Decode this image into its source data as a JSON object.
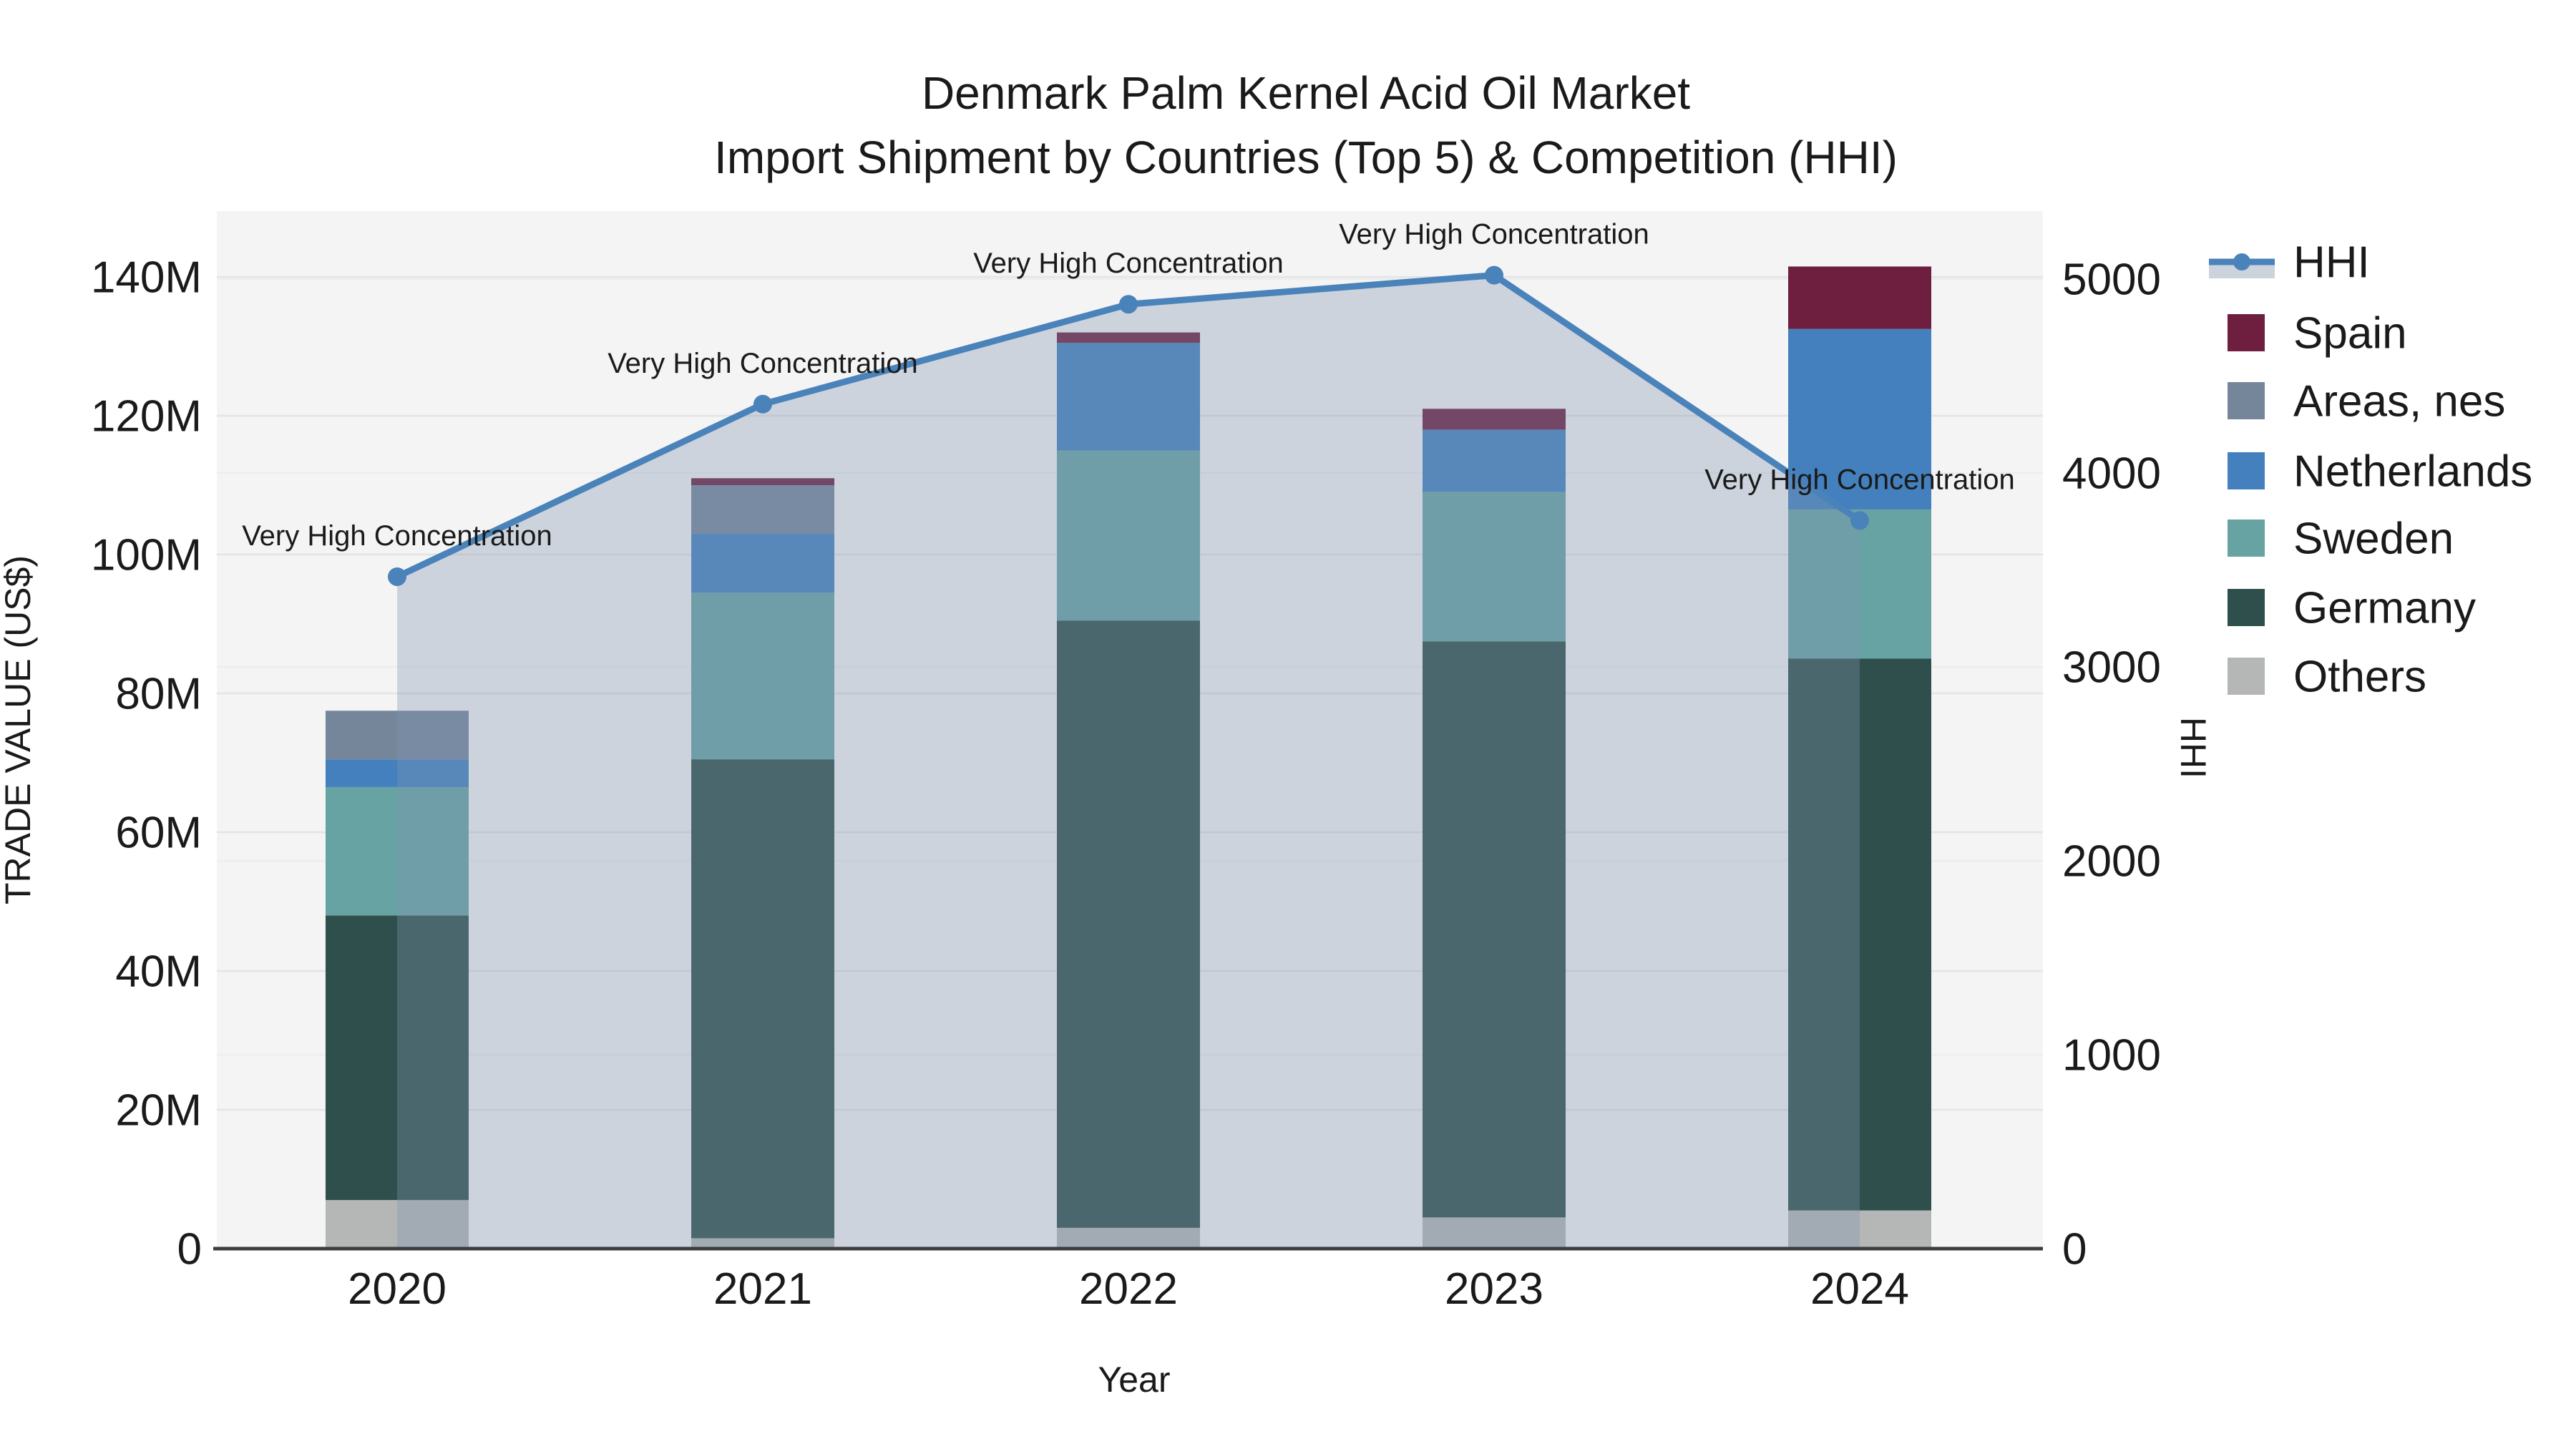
{
  "title": {
    "line1": "Denmark Palm Kernel Acid Oil Market",
    "line2": "Import Shipment by Countries (Top 5) & Competition (HHI)"
  },
  "axes": {
    "left": {
      "title": "TRADE VALUE (US$)",
      "ticks": [
        {
          "v": 0,
          "label": "0"
        },
        {
          "v": 20,
          "label": "20M"
        },
        {
          "v": 40,
          "label": "40M"
        },
        {
          "v": 60,
          "label": "60M"
        },
        {
          "v": 80,
          "label": "80M"
        },
        {
          "v": 100,
          "label": "100M"
        },
        {
          "v": 120,
          "label": "120M"
        },
        {
          "v": 140,
          "label": "140M"
        }
      ]
    },
    "right": {
      "title": "HHI",
      "ticks": [
        {
          "v": 0,
          "label": "0"
        },
        {
          "v": 1000,
          "label": "1000"
        },
        {
          "v": 2000,
          "label": "2000"
        },
        {
          "v": 3000,
          "label": "3000"
        },
        {
          "v": 4000,
          "label": "4000"
        },
        {
          "v": 5000,
          "label": "5000"
        }
      ]
    },
    "x": {
      "title": "Year"
    }
  },
  "legend": {
    "items": [
      {
        "label": "HHI",
        "kind": "line"
      },
      {
        "label": "Spain",
        "kind": "swatch",
        "color": "#6e1e3e"
      },
      {
        "label": "Areas, nes",
        "kind": "swatch",
        "color": "#76869a"
      },
      {
        "label": "Netherlands",
        "kind": "swatch",
        "color": "#4380bd"
      },
      {
        "label": "Sweden",
        "kind": "swatch",
        "color": "#68a3a3"
      },
      {
        "label": "Germany",
        "kind": "swatch",
        "color": "#2e4f4b"
      },
      {
        "label": "Others",
        "kind": "swatch",
        "color": "#b4b7b5"
      }
    ]
  },
  "colors": {
    "plot_bg": "#f4f4f4",
    "grid_left": "#e4e4e4",
    "grid_right": "#ebedef",
    "axis_line": "#3d3d3d",
    "hhi_line": "#4a82ba",
    "hhi_area": "rgba(130,148,178,0.35)",
    "legend_band": "#ccd3dd",
    "text": "#1a1a1a"
  },
  "chart_data": {
    "type": "bar",
    "subtype": "stacked-bars-with-line-dual-axis",
    "title": "Denmark Palm Kernel Acid Oil Market — Import Shipment by Countries (Top 5) & Competition (HHI)",
    "xlabel": "Year",
    "ylabel": "TRADE VALUE (US$)",
    "ylabel_right": "HHI",
    "categories": [
      "2020",
      "2021",
      "2022",
      "2023",
      "2024"
    ],
    "unit": "M US$",
    "ylim_left": [
      0,
      149
    ],
    "ylim_right": [
      0,
      5350
    ],
    "grid": "horizontal, both axes, faint",
    "legend_position": "outside top-right",
    "series": [
      {
        "name": "Others",
        "type": "bar",
        "color": "#b4b7b5",
        "values": [
          7,
          1.5,
          3,
          4.5,
          5.5
        ]
      },
      {
        "name": "Germany",
        "type": "bar",
        "color": "#2e4f4b",
        "values": [
          41,
          69,
          87.5,
          83,
          79.5
        ]
      },
      {
        "name": "Sweden",
        "type": "bar",
        "color": "#68a3a3",
        "values": [
          18.5,
          24,
          24.5,
          21.5,
          21.5
        ]
      },
      {
        "name": "Netherlands",
        "type": "bar",
        "color": "#4380bd",
        "values": [
          4,
          8.5,
          15.5,
          9,
          26
        ]
      },
      {
        "name": "Areas, nes",
        "type": "bar",
        "color": "#76869a",
        "values": [
          7,
          7,
          0,
          0,
          0
        ]
      },
      {
        "name": "Spain",
        "type": "bar",
        "color": "#6e1e3e",
        "values": [
          0,
          1,
          1.5,
          3,
          9
        ]
      }
    ],
    "bar_totals": [
      77.5,
      111,
      132,
      121,
      141.5
    ],
    "line_series": {
      "name": "HHI",
      "axis": "right",
      "color": "#4a82ba",
      "area_fill": "rgba(130,148,178,0.35)",
      "values": [
        3465,
        4355,
        4870,
        5020,
        3755
      ]
    },
    "point_annotation_text": "Very High Concentration",
    "annotations_per_point": [
      "Very High Concentration",
      "Very High Concentration",
      "Very High Concentration",
      "Very High Concentration",
      "Very High Concentration"
    ]
  }
}
